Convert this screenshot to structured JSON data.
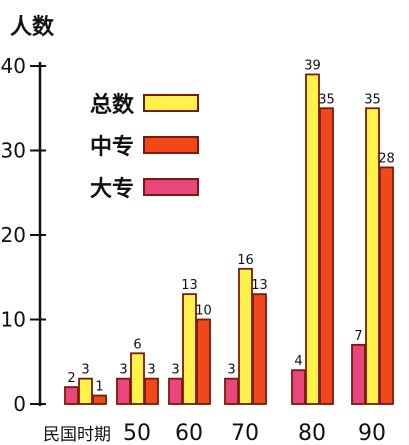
{
  "chart_data": {
    "type": "bar",
    "ylabel": "人数",
    "yticks": [
      0,
      10,
      20,
      30,
      40
    ],
    "ylim": [
      0,
      40
    ],
    "categories": [
      "民国时期",
      "50",
      "60",
      "70",
      "80",
      "90"
    ],
    "series": [
      {
        "name": "大专",
        "values": [
          2,
          3,
          3,
          3,
          4,
          7
        ],
        "color": "#e8467c"
      },
      {
        "name": "总数",
        "values": [
          3,
          6,
          13,
          16,
          39,
          35
        ],
        "color": "#fff24a"
      },
      {
        "name": "中专",
        "values": [
          1,
          3,
          10,
          13,
          35,
          28
        ],
        "color": "#f0481a"
      }
    ],
    "legend": {
      "position": "upper-left",
      "order": [
        "总数",
        "中专",
        "大专"
      ]
    },
    "grid": false
  }
}
